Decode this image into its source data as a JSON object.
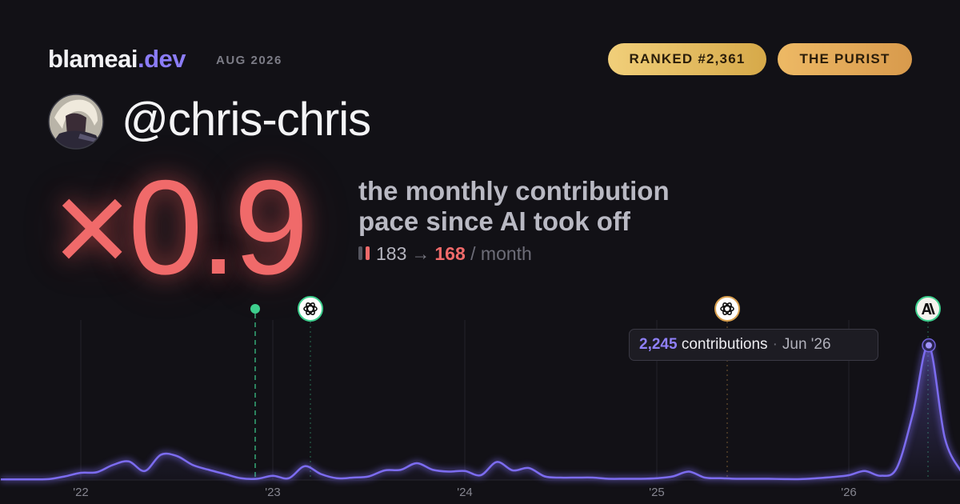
{
  "brand": {
    "name": "blameai",
    "tld": ".dev"
  },
  "date": "AUG 2026",
  "badges": [
    "RANKED #2,361",
    "THE PURIST"
  ],
  "username": "@chris-chris",
  "multiplier": "×0.9",
  "description": [
    "the monthly contribution",
    "pace since AI took off"
  ],
  "pace": {
    "before": 183,
    "arrow": "→",
    "after": 168,
    "unit": "/ month"
  },
  "chart_data": {
    "type": "line",
    "color": "#7c6cf0",
    "categories": [
      null,
      null,
      null,
      null,
      null,
      "'22",
      null,
      null,
      null,
      null,
      null,
      null,
      null,
      null,
      null,
      null,
      null,
      "'23",
      null,
      null,
      null,
      null,
      null,
      null,
      null,
      null,
      null,
      null,
      null,
      "'24",
      null,
      null,
      null,
      null,
      null,
      null,
      null,
      null,
      null,
      null,
      null,
      "'25",
      null,
      null,
      null,
      null,
      null,
      null,
      null,
      null,
      null,
      null,
      null,
      "'26",
      null,
      null,
      null,
      null,
      null,
      null,
      null
    ],
    "values": [
      10,
      10,
      10,
      15,
      60,
      120,
      130,
      250,
      310,
      150,
      420,
      400,
      250,
      170,
      100,
      30,
      20,
      70,
      30,
      230,
      100,
      30,
      40,
      60,
      160,
      170,
      280,
      170,
      140,
      150,
      80,
      300,
      160,
      200,
      60,
      40,
      40,
      40,
      20,
      20,
      20,
      30,
      60,
      140,
      40,
      30,
      20,
      20,
      20,
      15,
      15,
      30,
      50,
      80,
      150,
      70,
      200,
      1100,
      2245,
      700,
      150
    ],
    "ylim": [
      0,
      2400
    ],
    "x_grid": true,
    "tooltip": {
      "value": 2245,
      "value_label": "2,245",
      "text": "contributions",
      "separator": "·",
      "date": "Jun '26"
    }
  }
}
